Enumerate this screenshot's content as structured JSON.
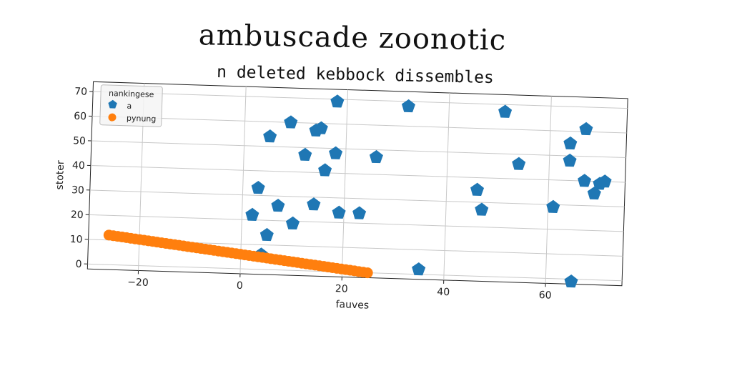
{
  "chart_data": {
    "type": "scatter",
    "title": "ambuscade zoonotic",
    "subtitle": "n deleted kebbock dissembles",
    "xlabel": "fauves",
    "ylabel": "stoter",
    "xlim": [
      -30,
      75
    ],
    "ylim": [
      -2,
      74
    ],
    "xticks": [
      -20,
      0,
      20,
      40,
      60
    ],
    "yticks": [
      0,
      10,
      20,
      30,
      40,
      50,
      60,
      70
    ],
    "grid": true,
    "legend": {
      "title": "nankingese",
      "position": "top-left"
    },
    "series": [
      {
        "name": "a",
        "marker": "pentagon",
        "color": "#1f77b4",
        "points": [
          [
            2,
            22
          ],
          [
            3,
            33
          ],
          [
            4,
            6
          ],
          [
            5,
            14
          ],
          [
            5,
            54
          ],
          [
            7,
            26
          ],
          [
            9,
            60
          ],
          [
            10,
            19
          ],
          [
            12,
            47
          ],
          [
            14,
            57
          ],
          [
            14,
            27
          ],
          [
            15,
            58
          ],
          [
            16,
            41
          ],
          [
            18,
            48
          ],
          [
            18,
            69
          ],
          [
            19,
            24
          ],
          [
            23,
            24
          ],
          [
            26,
            47
          ],
          [
            32,
            68
          ],
          [
            35,
            2
          ],
          [
            46,
            35
          ],
          [
            47,
            27
          ],
          [
            51,
            67
          ],
          [
            54,
            46
          ],
          [
            61,
            29
          ],
          [
            64,
            55
          ],
          [
            64,
            48
          ],
          [
            65,
            -1
          ],
          [
            67,
            61
          ],
          [
            67,
            40
          ],
          [
            69,
            35
          ],
          [
            70,
            39
          ],
          [
            71,
            40
          ]
        ]
      },
      {
        "name": "pynung",
        "marker": "circle",
        "color": "#ff7f0e",
        "line": {
          "x_start": -26,
          "y_start": 12,
          "x_end": 25,
          "y_end": 0,
          "count": 60
        }
      }
    ]
  }
}
